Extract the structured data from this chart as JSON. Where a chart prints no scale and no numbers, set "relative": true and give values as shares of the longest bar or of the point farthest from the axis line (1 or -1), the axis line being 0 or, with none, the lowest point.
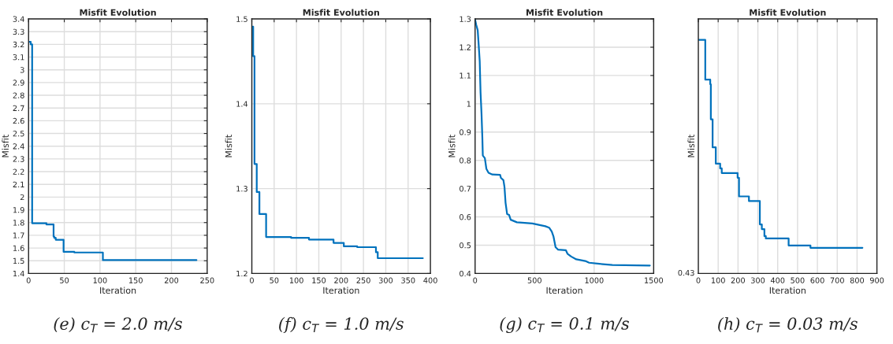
{
  "chart_data": [
    {
      "type": "step",
      "title": "Misfit Evolution",
      "subtitle": "(e) c$_{T}$ = 2.0 m/s",
      "xlabel": "Iteration",
      "ylabel": "Misfit",
      "series": [
        {
          "color": "#0072bd",
          "x": [
            0,
            3,
            5,
            25,
            35,
            36,
            38,
            49,
            64,
            104,
            235
          ],
          "values": [
            3.22,
            3.2,
            1.795,
            1.785,
            1.69,
            1.68,
            1.665,
            1.57,
            1.565,
            1.505,
            1.505
          ]
        }
      ],
      "xlim": [
        0,
        250
      ],
      "xticks": [
        0,
        50,
        100,
        150,
        200,
        250
      ],
      "ylim": [
        1.4,
        3.4
      ],
      "yticks": [
        1.4,
        1.5,
        1.6,
        1.7,
        1.8,
        1.9,
        2,
        2.1,
        2.2,
        2.3,
        2.4,
        2.5,
        2.6,
        2.7,
        2.8,
        2.9,
        3,
        3.1,
        3.2,
        3.3,
        3.4
      ],
      "grid": true
    },
    {
      "type": "step",
      "title": "Misfit Evolution",
      "subtitle": "(f) c$_{T}$ = 1.0 m/s",
      "xlabel": "Iteration",
      "ylabel": "Misfit",
      "series": [
        {
          "color": "#0072bd",
          "x": [
            2,
            3,
            6,
            11,
            17,
            32,
            88,
            128,
            183,
            206,
            236,
            278,
            282,
            383
          ],
          "values": [
            1.491,
            1.456,
            1.329,
            1.296,
            1.27,
            1.243,
            1.242,
            1.24,
            1.236,
            1.232,
            1.231,
            1.225,
            1.218,
            1.218
          ]
        }
      ],
      "xlim": [
        0,
        400
      ],
      "xticks": [
        0,
        50,
        100,
        150,
        200,
        250,
        300,
        350,
        400
      ],
      "ylim": [
        1.2,
        1.5
      ],
      "yticks": [
        1.2,
        1.3,
        1.4,
        1.5
      ],
      "grid": true
    },
    {
      "type": "line",
      "title": "Misfit Evolution",
      "subtitle": "(g) c$_{T}$ = 0.1 m/s",
      "xlabel": "Iteration",
      "ylabel": "Misfit",
      "series": [
        {
          "color": "#0072bd",
          "x": [
            0,
            9,
            22,
            30,
            39,
            46,
            54,
            61,
            65,
            82,
            95,
            113,
            145,
            210,
            217,
            238,
            247,
            256,
            269,
            286,
            299,
            351,
            481,
            535,
            590,
            622,
            644,
            659,
            676,
            698,
            763,
            776,
            807,
            850,
            926,
            958,
            1045,
            1153,
            1468
          ],
          "values": [
            1.298,
            1.28,
            1.26,
            1.21,
            1.15,
            1.04,
            0.966,
            0.882,
            0.817,
            0.808,
            0.77,
            0.756,
            0.75,
            0.749,
            0.738,
            0.73,
            0.706,
            0.65,
            0.61,
            0.607,
            0.59,
            0.581,
            0.577,
            0.572,
            0.567,
            0.562,
            0.548,
            0.53,
            0.493,
            0.484,
            0.482,
            0.47,
            0.46,
            0.45,
            0.444,
            0.438,
            0.434,
            0.43,
            0.428
          ]
        }
      ],
      "xlim": [
        0,
        1500
      ],
      "xticks": [
        0,
        500,
        1000,
        1500
      ],
      "ylim": [
        0.4,
        1.3
      ],
      "yticks": [
        0.4,
        0.5,
        0.6,
        0.7,
        0.8,
        0.9,
        1,
        1.1,
        1.2,
        1.3
      ],
      "grid": true
    },
    {
      "type": "step",
      "title": "Misfit Evolution",
      "subtitle": "(h) c$_{T}$ = 0.03 m/s",
      "xlabel": "Iteration",
      "ylabel": "Misfit",
      "relative": true,
      "annotations": [
        "0.43"
      ],
      "series": [
        {
          "color": "#0072bd",
          "x": [
            0,
            35,
            60,
            63,
            72,
            88,
            110,
            118,
            198,
            205,
            225,
            255,
            310,
            320,
            333,
            340,
            435,
            455,
            565,
            827
          ],
          "values": [
            1.0,
            0.83,
            0.81,
            0.66,
            0.54,
            0.47,
            0.45,
            0.43,
            0.41,
            0.33,
            0.33,
            0.31,
            0.21,
            0.19,
            0.16,
            0.15,
            0.15,
            0.12,
            0.11,
            0.11
          ]
        }
      ],
      "xlim": [
        0,
        900
      ],
      "xticks": [
        0,
        100,
        200,
        300,
        400,
        500,
        600,
        700,
        800,
        900
      ],
      "grid": "x"
    }
  ]
}
